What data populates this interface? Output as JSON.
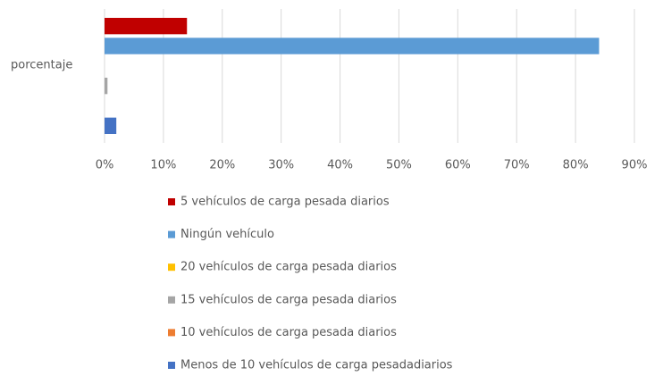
{
  "chart_data": {
    "type": "bar",
    "orientation": "horizontal",
    "categories": [
      "porcentaje"
    ],
    "series": [
      {
        "name": "5 vehículos de carga pesada diarios",
        "color": "#c00000",
        "values": [
          14
        ]
      },
      {
        "name": "Ningún vehículo",
        "color": "#5b9bd5",
        "values": [
          84
        ]
      },
      {
        "name": "20 vehículos de carga pesada diarios",
        "color": "#ffc000",
        "values": [
          0
        ]
      },
      {
        "name": "15 vehículos de carga pesada diarios",
        "color": "#a5a5a5",
        "values": [
          0.5
        ]
      },
      {
        "name": "10 vehículos de carga pesada diarios",
        "color": "#ed7d31",
        "values": [
          0
        ]
      },
      {
        "name": "Menos de 10 vehículos de carga pesadadiarios",
        "color": "#4472c4",
        "values": [
          2
        ]
      }
    ],
    "xlim": [
      0,
      90
    ],
    "xticks": [
      {
        "value": 0,
        "label": "0%"
      },
      {
        "value": 10,
        "label": "10%"
      },
      {
        "value": 20,
        "label": "20%"
      },
      {
        "value": 30,
        "label": "30%"
      },
      {
        "value": 40,
        "label": "40%"
      },
      {
        "value": 50,
        "label": "50%"
      },
      {
        "value": 60,
        "label": "60%"
      },
      {
        "value": 70,
        "label": "70%"
      },
      {
        "value": 80,
        "label": "80%"
      },
      {
        "value": 90,
        "label": "90%"
      }
    ],
    "grid": true,
    "legend": "bottom"
  }
}
